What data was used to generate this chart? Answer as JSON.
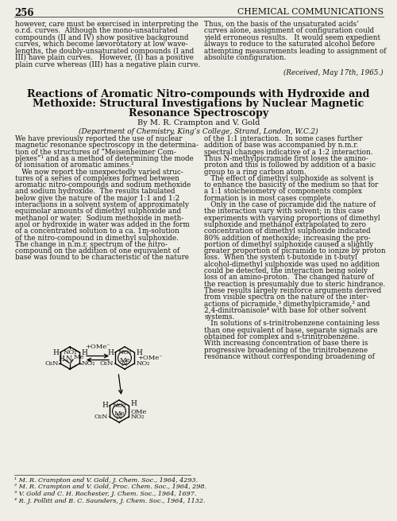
{
  "bg_color": "#f0ede6",
  "page_number": "256",
  "journal_name": "CHEMICAL COMMUNICATIONS",
  "top_left_text": [
    "however, care must be exercised in interpreting the",
    "o.r.d. curves.  Although the mono-unsaturated",
    "compounds (II and IV) show positive background",
    "curves, which become lævorotatory at low wave-",
    "lengths, the doubly-unsaturated compounds (I and",
    "III) have plain curves.   However, (I) has a positive",
    "plain curve whereas (III) has a negative plain curve."
  ],
  "top_right_text": [
    "Thus, on the basis of the unsaturated acids’",
    "curves alone, assignment of configuration could",
    "yield erroneous results.   It would seem expedient",
    "always to reduce to the saturated alcohol before",
    "attempting measurements leading to assignment of",
    "absolute configuration.",
    "(Received, May 17th, 1965.)"
  ],
  "title_line1": "Reactions of Aromatic Nitro-compounds with Hydroxide and",
  "title_line2": "Methoxide: Structural Investigations by Nuclear Magnetic",
  "title_line3": "Resonance Spectroscopy",
  "byline": "By M. R. Cʀampton and V. Gold",
  "byline_display": "By M. R. CRAMPTON and V. GOLD",
  "affiliation": "(Department of Chemistry, King’s College, Strand, London, W.C.2)",
  "body_left_col": [
    "We have previously reported the use of nuclear",
    "magnetic resonance spectroscopy in the determina-",
    "tion of the structures of “Meisenheimer Com-",
    "plexes”¹ and as a method of determining the mode",
    "of ionisation of aromatic amines.²",
    "   We now report the unexpectedly varied struc-",
    "tures of a series of complexes formed between",
    "aromatic nitro-compounds and sodium methoxide",
    "and sodium hydroxide.  The results tabulated",
    "below give the nature of the major 1:1 and 1:2",
    "interactions in a solvent system of approximately",
    "equimolar amounts of dimethyl sulphoxide and",
    "methanol or water.  Sodium methoxide in meth-",
    "anol or hydroxide in water was added in the form",
    "of a concentrated solution to a ca. 1ɱ-solution",
    "of the nitro-compound in dimethyl sulphoxide.",
    "The change in n.m.r. spectrum of the nitro-",
    "compound on the addition of one equivalent of",
    "base was found to be characteristic of the nature"
  ],
  "body_right_col": [
    "of the 1:1 interaction.  In some cases further",
    "addition of base was accompanied by n.m.r.",
    "spectral changes indicative of a 1:2 interaction.",
    "Thus N-methylpicramide first loses the amino-",
    "proton and this is followed by addition of a basic",
    "group to a ring carbon atom.",
    "   The effect of dimethyl sulphoxide as solvent is",
    "to enhance the basicity of the medium so that for",
    "a 1:1 stoicheiometry of components complex",
    "formation is in most cases complete.",
    "   Only in the case of picramide did the nature of",
    "the interaction vary with solvent; in this case",
    "experiments with varying proportions of dimethyl",
    "sulphoxide and methanol extrapolated to zero",
    "concentration of dimethyl sulphoxide indicated",
    "80% addition of methoxide; increasing the pro-",
    "portion of dimethyl sulphoxide caused a slightly",
    "greater proportion of picramide to ionize by proton",
    "loss.  When the system t-butoxide in t-butyl",
    "alcohol-dimethyl sulphoxide was used no addition",
    "could be detected, the interaction being solely",
    "loss of an amino-proton.  The changed nature of",
    "the reaction is presumably due to steric hindrance.",
    "These results largely reinforce arguments derived",
    "from visible spectra on the nature of the inter-",
    "actions of picramide,³ dimethylpicramide,³ and",
    "2,4-dinitroanisole⁴ with base for other solvent",
    "systems.",
    "   In solutions of s-trinitrobenzene containing less",
    "than one equivalent of base, separate signals are",
    "obtained for complex and s-trinitrobenzene.",
    "With increasing concentration of base there is",
    "progressive broadening of the trinitrobenzene",
    "resonance without corresponding broadening of"
  ],
  "footnotes": [
    "¹ M. R. Crampton and V. Gold, J. Chem. Soc., 1964, 4293.",
    "² M. R. Crampton and V. Gold, Proc. Chem. Soc., 1964, 298.",
    "³ V. Gold and C. H. Rochester, J. Chem. Soc., 1964, 1697.",
    "⁴ R. J. Pollitt and B. C. Saunders, J. Chem. Soc., 1964, 1132."
  ]
}
